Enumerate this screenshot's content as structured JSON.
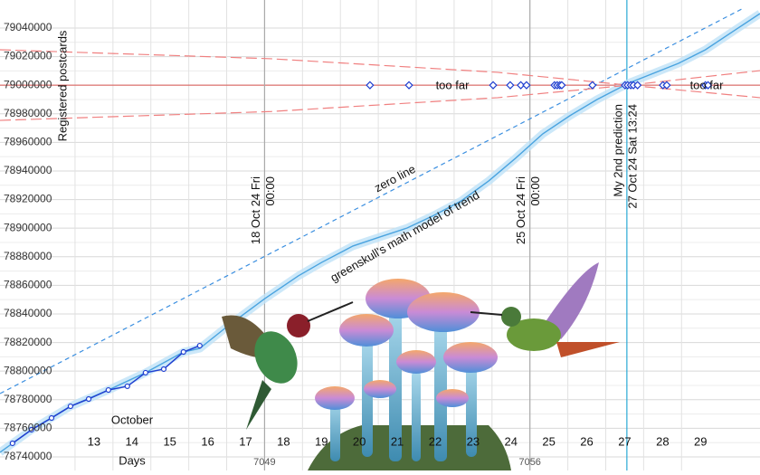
{
  "chart_data": {
    "type": "line",
    "ylabel": "Registered postcards",
    "xlabel": "Days",
    "month_label": "October",
    "xlim": [
      10.52,
      30.57
    ],
    "xticks": [
      13,
      14,
      15,
      16,
      17,
      18,
      19,
      20,
      21,
      22,
      23,
      24,
      25,
      26,
      27,
      28,
      29
    ],
    "ylim": [
      78730500,
      79059600
    ],
    "yticks": [
      78740000,
      78760000,
      78780000,
      78800000,
      78820000,
      78840000,
      78860000,
      78880000,
      78900000,
      78920000,
      78940000,
      78960000,
      78980000,
      79000000,
      79020000,
      79040000
    ],
    "grid": true,
    "series": [
      {
        "color": "#4aa3df",
        "style": "trend",
        "x": [
          10.52,
          11.35,
          12.38,
          13.38,
          14.36,
          15.36,
          15.79,
          16.48,
          17.51,
          18.39,
          19.01,
          19.83,
          20.54,
          21.26,
          21.97,
          22.69,
          23.41,
          24.12,
          24.84,
          25.55,
          26.27,
          27.1,
          27.7,
          28.42,
          29.13,
          29.85,
          30.57
        ],
        "values": [
          78743200,
          78759000,
          78775400,
          78786800,
          78798900,
          78813400,
          78815900,
          78830500,
          78850800,
          78866600,
          78876100,
          78887500,
          78893800,
          78900100,
          78909000,
          78919100,
          78933000,
          78948900,
          78966000,
          78978600,
          78990000,
          79001400,
          79007700,
          79015300,
          79024800,
          79037500,
          79050100
        ]
      },
      {
        "color": "#1f3fd0",
        "style": "markers",
        "x": [
          10.85,
          11.35,
          11.88,
          12.38,
          12.86,
          13.38,
          13.88,
          14.36,
          14.84,
          15.36,
          15.79
        ],
        "values": [
          78749500,
          78759000,
          78767200,
          78775400,
          78780500,
          78786800,
          78789400,
          78798900,
          78801400,
          78813400,
          78817800
        ]
      },
      {
        "color": "#3b8fe0",
        "style": "dashed",
        "x": [
          10.52,
          30.09
        ],
        "values": [
          78784300,
          79053300
        ]
      },
      {
        "color": "#f08080",
        "style": "dashed-long",
        "x": [
          10.52,
          17.68,
          23.65,
          27.1,
          30.57
        ],
        "values": [
          79024800,
          79018500,
          79009000,
          79000000,
          78991300
        ]
      },
      {
        "color": "#f08080",
        "style": "dashed-long",
        "x": [
          10.52,
          17.68,
          23.65,
          27.1,
          30.57
        ],
        "values": [
          78975400,
          78981600,
          78991300,
          79000000,
          79010200
        ]
      },
      {
        "color": "#1f3fd0",
        "style": "diamonds",
        "x": [
          20.28,
          21.31,
          23.53,
          23.98,
          24.26,
          24.41,
          25.15,
          25.22,
          25.29,
          25.34,
          26.15,
          27.01,
          27.08,
          27.16,
          27.23,
          27.34,
          28.01,
          28.11,
          29.13,
          29.2
        ],
        "values": [
          79000000,
          79000000,
          79000000,
          79000000,
          79000000,
          79000000,
          79000000,
          79000000,
          79000000,
          79000000,
          79000000,
          79000000,
          79000000,
          79000000,
          79000000,
          79000000,
          79000000,
          79000000,
          79000000,
          79000000
        ]
      }
    ],
    "hline": {
      "y": 79000000,
      "color": "#d9534f"
    },
    "vlines": [
      {
        "x": 17.5,
        "color": "#aaaaaa",
        "labels": [
          "18 Oct 24 Fri",
          "00:00"
        ],
        "footer": "7049"
      },
      {
        "x": 24.5,
        "color": "#aaaaaa",
        "labels": [
          "25 Oct 24 Fri",
          "00:00"
        ],
        "footer": "7056"
      },
      {
        "x": 27.058,
        "color": "#29a9d6",
        "labels": [
          "My 2nd prediction",
          "27 Oct 24 Sat 13:24"
        ]
      }
    ],
    "annotations": [
      "too far",
      "too far",
      "zero line",
      "greenskull's math model of trend"
    ]
  }
}
